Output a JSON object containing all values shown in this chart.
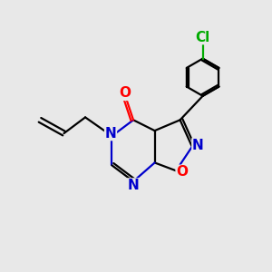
{
  "bg_color": "#e8e8e8",
  "bond_color": "#000000",
  "N_color": "#0000cc",
  "O_color": "#ff0000",
  "Cl_color": "#00aa00",
  "bond_width": 1.6,
  "fig_size": [
    3.0,
    3.0
  ],
  "dpi": 100,
  "xlim": [
    0,
    10
  ],
  "ylim": [
    0,
    10
  ]
}
